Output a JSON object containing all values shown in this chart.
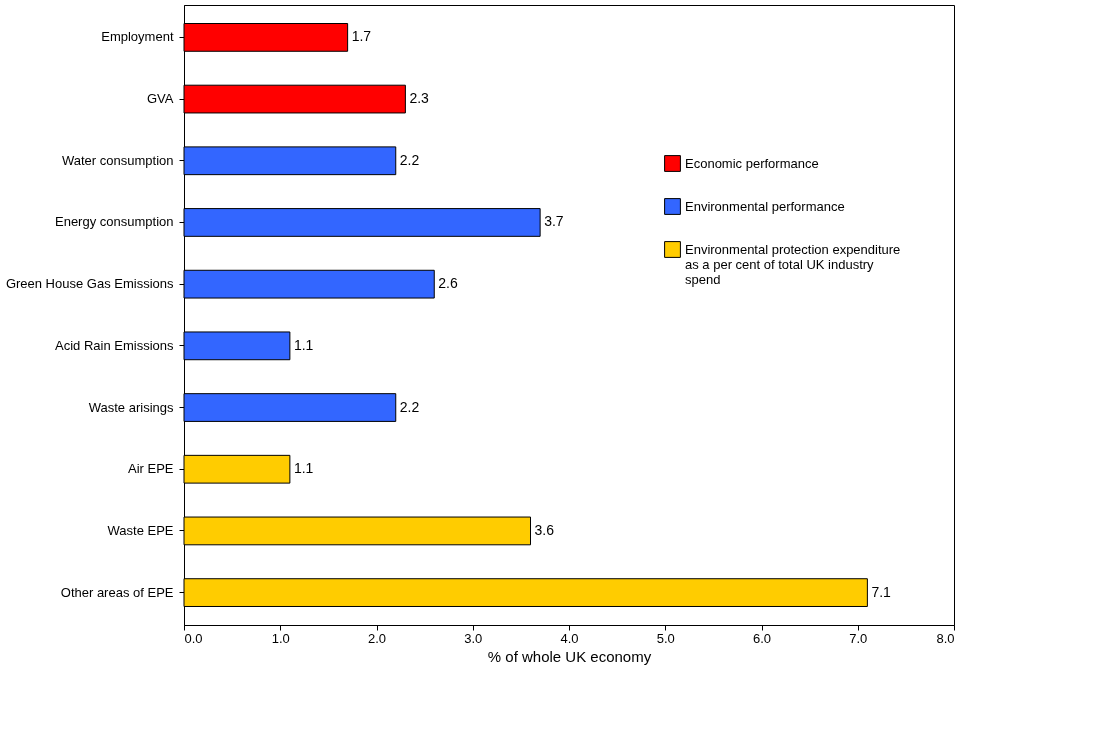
{
  "chart_data": {
    "type": "bar",
    "orientation": "horizontal",
    "xlabel": "% of whole UK economy",
    "categories": [
      "Employment",
      "GVA",
      "Water consumption",
      "Energy consumption",
      "Green House Gas Emissions",
      "Acid Rain Emissions",
      "Waste arisings",
      "Air EPE",
      "Waste EPE",
      "Other areas of EPE"
    ],
    "series": [
      {
        "name": "Economic performance",
        "color": "#ff0000",
        "values": [
          1.7,
          2.3,
          null,
          null,
          null,
          null,
          null,
          null,
          null,
          null
        ]
      },
      {
        "name": "Environmental performance",
        "color": "#3366ff",
        "values": [
          null,
          null,
          2.2,
          3.7,
          2.6,
          1.1,
          2.2,
          null,
          null,
          null
        ]
      },
      {
        "name": "Environmental protection expenditure as a per cent of total UK industry spend",
        "color": "#ffcc00",
        "values": [
          null,
          null,
          null,
          null,
          null,
          null,
          null,
          1.1,
          3.6,
          7.1
        ]
      }
    ],
    "xlim": [
      0,
      8
    ],
    "xticks": [
      {
        "value": 0,
        "label": "0.0"
      },
      {
        "value": 1,
        "label": "1.0"
      },
      {
        "value": 2,
        "label": "2.0"
      },
      {
        "value": 3,
        "label": "3.0"
      },
      {
        "value": 4,
        "label": "4.0"
      },
      {
        "value": 5,
        "label": "5.0"
      },
      {
        "value": 6,
        "label": "6.0"
      },
      {
        "value": 7,
        "label": "7.0"
      },
      {
        "value": 8,
        "label": "8.0"
      }
    ],
    "data_labels": true,
    "grid": false,
    "legend": "right"
  }
}
